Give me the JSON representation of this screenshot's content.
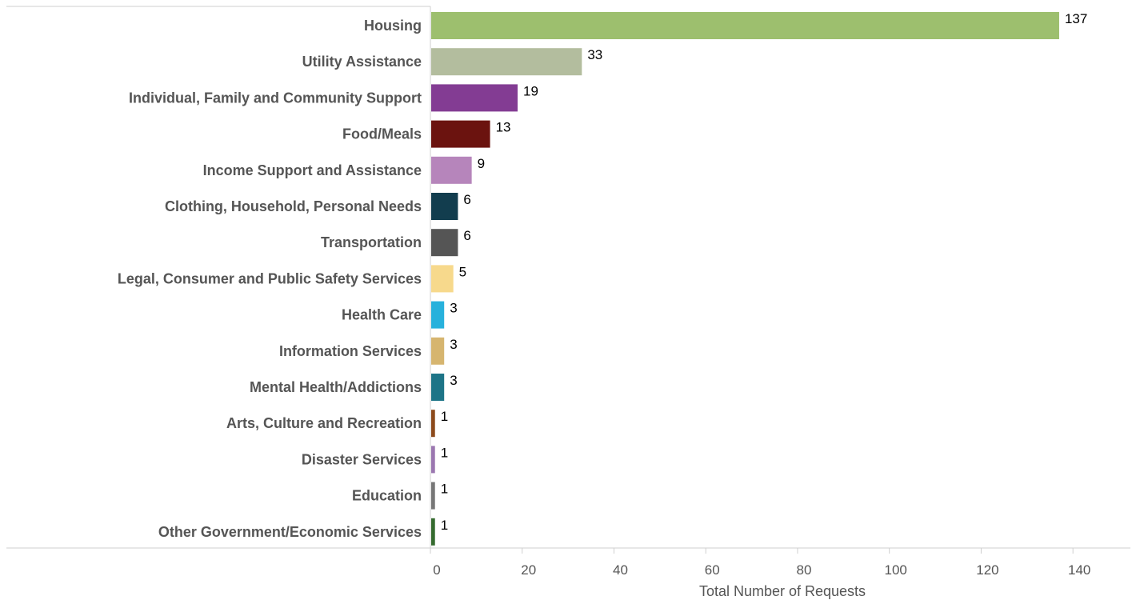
{
  "chart_data": {
    "type": "bar",
    "orientation": "horizontal",
    "title": "",
    "xlabel": "Total Number of Requests",
    "ylabel": "",
    "xlim": [
      0,
      150
    ],
    "xticks": [
      0,
      20,
      40,
      60,
      80,
      100,
      120,
      140
    ],
    "grid": false,
    "legend": "none",
    "categories": [
      "Housing",
      "Utility Assistance",
      "Individual, Family and Community Support",
      "Food/Meals",
      "Income Support and Assistance",
      "Clothing, Household, Personal Needs",
      "Transportation",
      "Legal, Consumer and Public Safety Services",
      "Health Care",
      "Information Services",
      "Mental Health/Addictions",
      "Arts, Culture and Recreation",
      "Disaster Services",
      "Education",
      "Other Government/Economic Services"
    ],
    "values": [
      137,
      33,
      19,
      13,
      9,
      6,
      6,
      5,
      3,
      3,
      3,
      1,
      1,
      1,
      1
    ],
    "colors": [
      "#9dbf6e",
      "#b3bd9e",
      "#833c93",
      "#6b130f",
      "#b685bb",
      "#123d4e",
      "#555555",
      "#f7d98c",
      "#27b1dc",
      "#d6b56f",
      "#1d7487",
      "#8c4a1c",
      "#9b77b0",
      "#777777",
      "#356b2f"
    ]
  }
}
